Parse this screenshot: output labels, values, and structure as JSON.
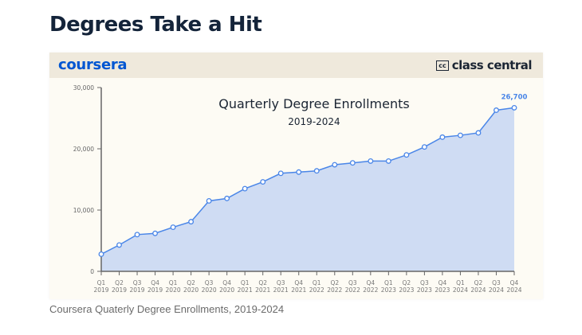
{
  "page_title": "Degrees Take a Hit",
  "header": {
    "left_logo": "coursera",
    "right_logo_mark": "cc",
    "right_logo": "class central"
  },
  "caption": "Coursera Quaterly Degree Enrollments, 2019-2024",
  "colors": {
    "line": "#4a86e8",
    "area": "#cfdcf3",
    "brand_coursera": "#0056d2",
    "band": "#efe9dc"
  },
  "chart_data": {
    "type": "area",
    "title": "Quarterly Degree Enrollments",
    "subtitle": "2019-2024",
    "categories": [
      [
        "Q1",
        "2019"
      ],
      [
        "Q2",
        "2019"
      ],
      [
        "Q3",
        "2019"
      ],
      [
        "Q4",
        "2019"
      ],
      [
        "Q1",
        "2020"
      ],
      [
        "Q2",
        "2020"
      ],
      [
        "Q3",
        "2020"
      ],
      [
        "Q4",
        "2020"
      ],
      [
        "Q1",
        "2021"
      ],
      [
        "Q2",
        "2021"
      ],
      [
        "Q3",
        "2021"
      ],
      [
        "Q4",
        "2021"
      ],
      [
        "Q1",
        "2022"
      ],
      [
        "Q2",
        "2022"
      ],
      [
        "Q3",
        "2022"
      ],
      [
        "Q4",
        "2022"
      ],
      [
        "Q1",
        "2023"
      ],
      [
        "Q2",
        "2023"
      ],
      [
        "Q3",
        "2023"
      ],
      [
        "Q4",
        "2023"
      ],
      [
        "Q1",
        "2024"
      ],
      [
        "Q2",
        "2024"
      ],
      [
        "Q3",
        "2024"
      ],
      [
        "Q4",
        "2024"
      ]
    ],
    "values": [
      2800,
      4300,
      6000,
      6200,
      7200,
      8100,
      11500,
      11900,
      13500,
      14600,
      16000,
      16200,
      16400,
      17400,
      17700,
      18000,
      18000,
      19000,
      20300,
      21900,
      22200,
      22600,
      26300,
      26700
    ],
    "ylim": [
      0,
      30000
    ],
    "yticks": [
      0,
      10000,
      20000,
      30000
    ],
    "ytick_labels": [
      "0",
      "10,000",
      "20,000",
      "30,000"
    ],
    "data_label": "26,700",
    "grid": false,
    "legend": "none"
  }
}
